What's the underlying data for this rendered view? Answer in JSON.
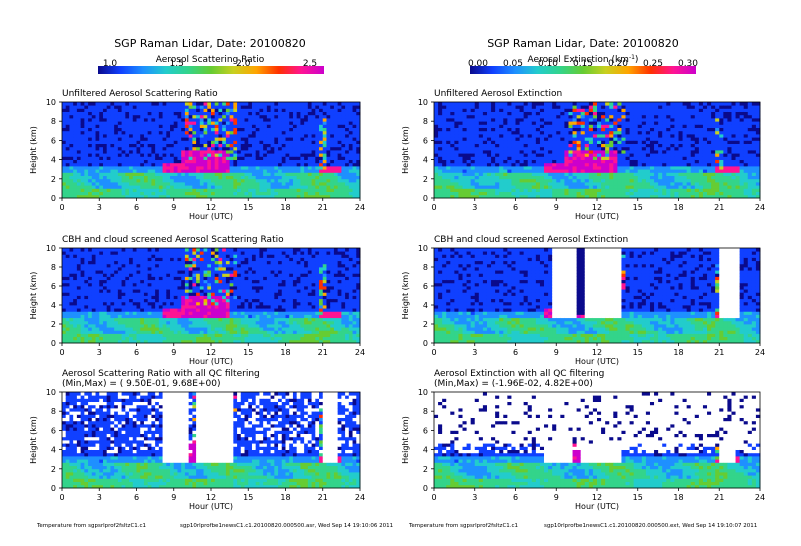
{
  "columns": [
    {
      "title": "SGP Raman Lidar, Date: 20100820",
      "colorbar_label": "Aerosol Scattering Ratio",
      "colorbar_label_sup": "",
      "colorbar_label_tail": "",
      "colorbar_ticks": [
        "1.0",
        "1.5",
        "2.0",
        "2.5"
      ],
      "footer_left": "Temperature from sgpsrlprof2fsltzC1.c1",
      "footer_right": "sgp10rlprofbe1newsC1.c1.20100820.000500.asr, Wed Sep 14 19:10:06 2011"
    },
    {
      "title": "SGP Raman Lidar, Date: 20100820",
      "colorbar_label": "Aerosol Extinction (km",
      "colorbar_label_sup": "-1",
      "colorbar_label_tail": ")",
      "colorbar_ticks": [
        "0.00",
        "0.05",
        "0.10",
        "0.15",
        "0.20",
        "0.25",
        "0.30"
      ],
      "footer_left": "Temperature from sgpsrlprof2fsltzC1.c1",
      "footer_right": "sgp10rlprofbe1newsC1.c1.20100820.000500.ext, Wed Sep 14 19:10:07 2011"
    }
  ],
  "colors": {
    "scale": [
      "#0a0a8c",
      "#1040ff",
      "#1e90ff",
      "#22cccc",
      "#33d48a",
      "#66cc33",
      "#c8d020",
      "#ffa500",
      "#ff3000",
      "#ff1493",
      "#cc00cc"
    ],
    "text": "#000000",
    "background": "#ffffff"
  },
  "chart_data": [
    {
      "type": "heatmap",
      "id": "asr_unfiltered",
      "title": "Unfiltered Aerosol Scattering Ratio",
      "subtitle": "",
      "xlabel": "Hour (UTC)",
      "ylabel": "Height (km)",
      "xlim": [
        0,
        24
      ],
      "ylim": [
        0,
        10
      ],
      "xticks": [
        "0",
        "3",
        "6",
        "9",
        "12",
        "15",
        "18",
        "21",
        "24"
      ],
      "yticks": [
        "0",
        "2",
        "4",
        "6",
        "8",
        "10"
      ],
      "colorbar_range": [
        1.0,
        2.5
      ],
      "filtering": "none"
    },
    {
      "type": "heatmap",
      "id": "ext_unfiltered",
      "title": "Unfiltered Aerosol Extinction",
      "subtitle": "",
      "xlabel": "Hour (UTC)",
      "ylabel": "Height (km)",
      "xlim": [
        0,
        24
      ],
      "ylim": [
        0,
        10
      ],
      "xticks": [
        "0",
        "3",
        "6",
        "9",
        "12",
        "15",
        "18",
        "21",
        "24"
      ],
      "yticks": [
        "0",
        "2",
        "4",
        "6",
        "8",
        "10"
      ],
      "colorbar_range": [
        0.0,
        0.3
      ],
      "filtering": "none"
    },
    {
      "type": "heatmap",
      "id": "asr_cbh",
      "title": "CBH and cloud screened Aerosol Scattering Ratio",
      "subtitle": "",
      "xlabel": "Hour (UTC)",
      "ylabel": "Height (km)",
      "xlim": [
        0,
        24
      ],
      "ylim": [
        0,
        10
      ],
      "xticks": [
        "0",
        "3",
        "6",
        "9",
        "12",
        "15",
        "18",
        "21",
        "24"
      ],
      "yticks": [
        "0",
        "2",
        "4",
        "6",
        "8",
        "10"
      ],
      "colorbar_range": [
        1.0,
        2.5
      ],
      "filtering": "cbh"
    },
    {
      "type": "heatmap",
      "id": "ext_cbh",
      "title": "CBH and cloud screened Aerosol Extinction",
      "subtitle": "",
      "xlabel": "Hour (UTC)",
      "ylabel": "Height (km)",
      "xlim": [
        0,
        24
      ],
      "ylim": [
        0,
        10
      ],
      "xticks": [
        "0",
        "3",
        "6",
        "9",
        "12",
        "15",
        "18",
        "21",
        "24"
      ],
      "yticks": [
        "0",
        "2",
        "4",
        "6",
        "8",
        "10"
      ],
      "colorbar_range": [
        0.0,
        0.3
      ],
      "filtering": "cbh"
    },
    {
      "type": "heatmap",
      "id": "asr_qc",
      "title": "Aerosol Scattering Ratio with all QC filtering",
      "subtitle": "(Min,Max) = ( 9.50E-01, 9.68E+00)",
      "xlabel": "Hour (UTC)",
      "ylabel": "Height (km)",
      "xlim": [
        0,
        24
      ],
      "ylim": [
        0,
        10
      ],
      "xticks": [
        "0",
        "3",
        "6",
        "9",
        "12",
        "15",
        "18",
        "21",
        "24"
      ],
      "yticks": [
        "0",
        "2",
        "4",
        "6",
        "8",
        "10"
      ],
      "colorbar_range": [
        1.0,
        2.5
      ],
      "filtering": "qc"
    },
    {
      "type": "heatmap",
      "id": "ext_qc",
      "title": "Aerosol Extinction with all QC filtering",
      "subtitle": "(Min,Max) = (-1.96E-02, 4.82E+00)",
      "xlabel": "Hour (UTC)",
      "ylabel": "Height (km)",
      "xlim": [
        0,
        24
      ],
      "ylim": [
        0,
        10
      ],
      "xticks": [
        "0",
        "3",
        "6",
        "9",
        "12",
        "15",
        "18",
        "21",
        "24"
      ],
      "yticks": [
        "0",
        "2",
        "4",
        "6",
        "8",
        "10"
      ],
      "colorbar_range": [
        0.0,
        0.3
      ],
      "filtering": "qc"
    }
  ]
}
